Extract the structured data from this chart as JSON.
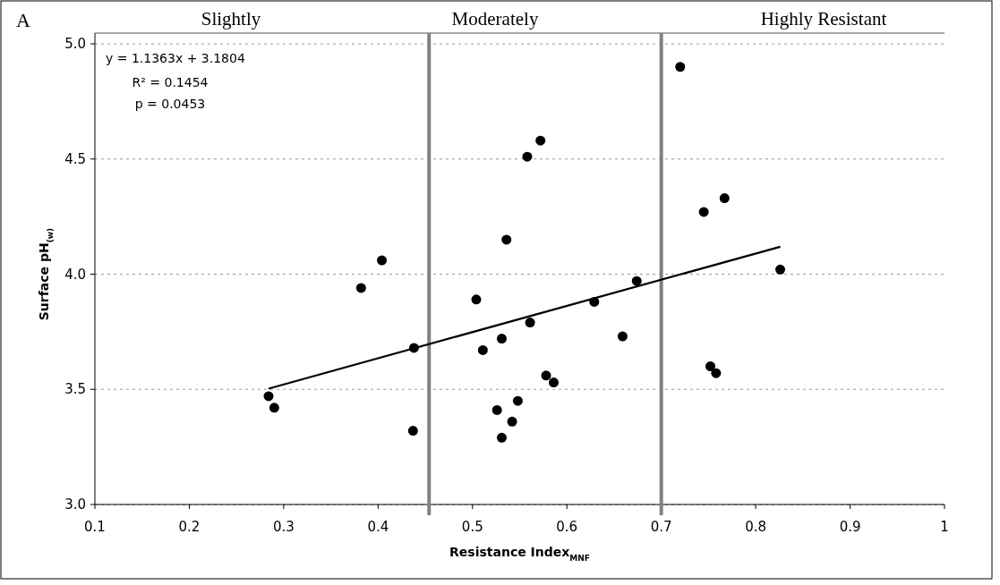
{
  "chart_data": {
    "type": "scatter",
    "xlabel": "Resistance Index$_{MNF}$",
    "ylabel": "Surface pH$_{(w)}$",
    "xlim": [
      0.1,
      1
    ],
    "xticks": [
      0.1,
      0.2,
      0.3,
      0.4,
      0.5,
      0.6,
      0.7,
      0.8,
      0.9,
      1
    ],
    "ylim": [
      3,
      5
    ],
    "yticks": [
      {
        "value": 3,
        "label": "3.0"
      },
      {
        "value": 3.5,
        "label": "3.5"
      },
      {
        "value": 4,
        "label": "4.0"
      },
      {
        "value": 4.5,
        "label": "4.5"
      },
      {
        "value": 5,
        "label": "5.0"
      }
    ],
    "grid": "y",
    "series": [
      {
        "marker": "circle",
        "color": "#000000",
        "x": [
          0.284,
          0.29,
          0.382,
          0.404,
          0.437,
          0.438,
          0.504,
          0.511,
          0.526,
          0.531,
          0.531,
          0.536,
          0.542,
          0.548,
          0.558,
          0.561,
          0.572,
          0.578,
          0.586,
          0.629,
          0.659,
          0.674,
          0.72,
          0.745,
          0.752,
          0.758,
          0.767,
          0.826
        ],
        "values": [
          3.47,
          3.42,
          3.94,
          4.06,
          3.32,
          3.68,
          3.89,
          3.67,
          3.41,
          3.72,
          3.29,
          4.15,
          3.36,
          3.45,
          4.51,
          3.79,
          4.58,
          3.56,
          3.53,
          3.88,
          3.73,
          3.97,
          4.9,
          4.27,
          3.6,
          3.57,
          4.33,
          4.02
        ]
      },
      {
        "type": "line",
        "color": "#000000",
        "x": [
          0.284,
          0.826
        ],
        "values": [
          3.503,
          4.119
        ]
      }
    ],
    "ref_lines": [
      {
        "axis": "x",
        "value": 0.454,
        "color": "#808080"
      },
      {
        "axis": "x",
        "value": 0.7,
        "color": "#808080"
      }
    ],
    "annotations": [
      "A",
      "Slightly",
      "Moderately",
      "Highly Resistant",
      "y = 1.1363x + 3.1804",
      "R² = 0.1454",
      "p = 0.0453"
    ]
  }
}
